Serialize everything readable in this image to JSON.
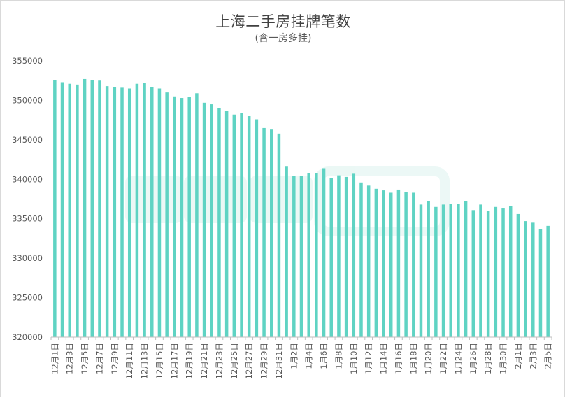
{
  "chart_data": {
    "type": "bar",
    "title": "上海二手房挂牌笔数",
    "subtitle": "(含一房多挂)",
    "xlabel": "",
    "ylabel": "",
    "ylim": [
      320000,
      355000
    ],
    "yticks": [
      320000,
      325000,
      330000,
      335000,
      340000,
      345000,
      350000,
      355000
    ],
    "grid": false,
    "legend": "none",
    "bar_color": "#5fd3c3",
    "categories": [
      "12月1日",
      "12月2日",
      "12月3日",
      "12月4日",
      "12月5日",
      "12月6日",
      "12月7日",
      "12月8日",
      "12月9日",
      "12月10日",
      "12月11日",
      "12月12日",
      "12月13日",
      "12月14日",
      "12月15日",
      "12月16日",
      "12月17日",
      "12月18日",
      "12月19日",
      "12月20日",
      "12月21日",
      "12月22日",
      "12月23日",
      "12月24日",
      "12月25日",
      "12月26日",
      "12月27日",
      "12月28日",
      "12月29日",
      "12月30日",
      "12月31日",
      "1月1日",
      "1月2日",
      "1月3日",
      "1月4日",
      "1月5日",
      "1月6日",
      "1月7日",
      "1月8日",
      "1月9日",
      "1月10日",
      "1月11日",
      "1月12日",
      "1月13日",
      "1月14日",
      "1月15日",
      "1月16日",
      "1月17日",
      "1月18日",
      "1月19日",
      "1月20日",
      "1月21日",
      "1月22日",
      "1月23日",
      "1月24日",
      "1月25日",
      "1月26日",
      "1月27日",
      "1月28日",
      "1月29日",
      "1月30日",
      "1月31日",
      "2月1日",
      "2月2日",
      "2月3日",
      "2月4日",
      "2月5日"
    ],
    "shown_labels": [
      "12月1日",
      "12月3日",
      "12月5日",
      "12月7日",
      "12月9日",
      "12月11日",
      "12月13日",
      "12月15日",
      "12月17日",
      "12月19日",
      "12月21日",
      "12月23日",
      "12月25日",
      "12月27日",
      "12月29日",
      "12月31日",
      "1月2日",
      "1月4日",
      "1月6日",
      "1月8日",
      "1月10日",
      "1月12日",
      "1月14日",
      "1月16日",
      "1月18日",
      "1月20日",
      "1月22日",
      "1月24日",
      "1月26日",
      "1月28日",
      "1月30日",
      "2月1日",
      "2月3日",
      "2月5日"
    ],
    "values": [
      352600,
      352300,
      352100,
      352000,
      352700,
      352600,
      352500,
      351800,
      351700,
      351600,
      351500,
      352100,
      352200,
      351700,
      351500,
      351000,
      350500,
      350300,
      350400,
      350900,
      349700,
      349500,
      349000,
      348700,
      348200,
      348400,
      348000,
      347600,
      346500,
      346300,
      345800,
      341600,
      340400,
      340400,
      340800,
      340800,
      341400,
      340200,
      340500,
      340300,
      340700,
      339600,
      339200,
      338800,
      338600,
      338300,
      338700,
      338400,
      338300,
      336800,
      337200,
      336500,
      336800,
      336900,
      336900,
      337200,
      336100,
      336800,
      336000,
      336500,
      336300,
      336600,
      335600,
      334700,
      334500,
      333700,
      334100
    ]
  }
}
